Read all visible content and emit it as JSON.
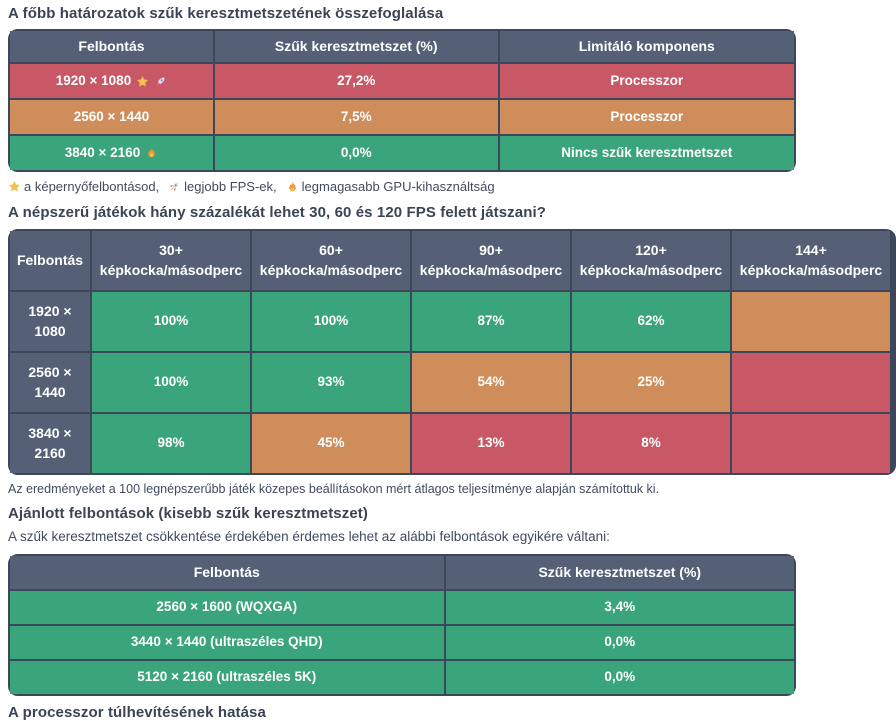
{
  "colors": {
    "red": "#c95866",
    "orange": "#cf8d5b",
    "green": "#3aa57b",
    "header_bg": "#556077",
    "table_border": "#3c4759",
    "heading_text": "#3a4454",
    "body_text": "#414b5e",
    "cell_text": "#ffffff",
    "star_gold": "#f2c14e",
    "flame_orange": "#f49038",
    "rocket_red": "#d95368"
  },
  "icons": {
    "star": "⭐",
    "rocket": "🚀",
    "flame": "🔥"
  },
  "section1": {
    "title": "A főbb határozatok szűk keresztmetszetének összefoglalása",
    "table": {
      "headers": [
        "Felbontás",
        "Szűk keresztmetszet (%)",
        "Limitáló komponens"
      ],
      "rows": [
        {
          "resolution": "1920 × 1080",
          "icons": [
            "star",
            "rocket"
          ],
          "bottleneck": "27,2%",
          "component": "Processzor",
          "status": "red"
        },
        {
          "resolution": "2560 × 1440",
          "icons": [],
          "bottleneck": "7,5%",
          "component": "Processzor",
          "status": "orange"
        },
        {
          "resolution": "3840 × 2160",
          "icons": [
            "flame"
          ],
          "bottleneck": "0,0%",
          "component": "Nincs szűk keresztmetszet",
          "status": "green"
        }
      ]
    },
    "legend": [
      {
        "icon": "star",
        "text": "a képernyőfelbontásod,"
      },
      {
        "icon": "rocket",
        "text": "legjobb FPS-ek,"
      },
      {
        "icon": "flame",
        "text": "legmagasabb GPU-kihasználtság"
      }
    ]
  },
  "section2": {
    "title": "A népszerű játékok hány százalékát lehet 30, 60 és 120 FPS felett játszani?",
    "table": {
      "corner_header": "Felbontás",
      "fps_headers": [
        {
          "threshold": "30+",
          "unit": "képkocka/másodperc"
        },
        {
          "threshold": "60+",
          "unit": "képkocka/másodperc"
        },
        {
          "threshold": "90+",
          "unit": "képkocka/másodperc"
        },
        {
          "threshold": "120+",
          "unit": "képkocka/másodperc"
        },
        {
          "threshold": "144+",
          "unit": "képkocka/másodperc",
          "partially_visible": true
        }
      ],
      "rows": [
        {
          "resolution_line1": "1920 ×",
          "resolution_line2": "1080",
          "cells": [
            {
              "value": "100%",
              "status": "green"
            },
            {
              "value": "100%",
              "status": "green"
            },
            {
              "value": "87%",
              "status": "green"
            },
            {
              "value": "62%",
              "status": "green"
            },
            {
              "value": "",
              "status": "orange"
            }
          ]
        },
        {
          "resolution_line1": "2560 ×",
          "resolution_line2": "1440",
          "cells": [
            {
              "value": "100%",
              "status": "green"
            },
            {
              "value": "93%",
              "status": "green"
            },
            {
              "value": "54%",
              "status": "orange"
            },
            {
              "value": "25%",
              "status": "orange"
            },
            {
              "value": "",
              "status": "red"
            }
          ]
        },
        {
          "resolution_line1": "3840 ×",
          "resolution_line2": "2160",
          "cells": [
            {
              "value": "98%",
              "status": "green"
            },
            {
              "value": "45%",
              "status": "orange"
            },
            {
              "value": "13%",
              "status": "red"
            },
            {
              "value": "8%",
              "status": "red"
            },
            {
              "value": "",
              "status": "red"
            }
          ]
        }
      ]
    },
    "note": "Az eredményeket a 100 legnépszerűbb játék közepes beállításokon mért átlagos teljesítménye alapján számítottuk ki."
  },
  "section3": {
    "title": "Ajánlott felbontások (kisebb szűk keresztmetszet)",
    "description": "A szűk keresztmetszet csökkentése érdekében érdemes lehet az alábbi felbontások egyikére váltani:",
    "table": {
      "headers": [
        "Felbontás",
        "Szűk keresztmetszet (%)"
      ],
      "rows": [
        {
          "resolution": "2560 × 1600 (WQXGA)",
          "bottleneck": "3,4%",
          "status": "green"
        },
        {
          "resolution": "3440 × 1440 (ultraszéles QHD)",
          "bottleneck": "0,0%",
          "status": "green"
        },
        {
          "resolution": "5120 × 2160 (ultraszéles 5K)",
          "bottleneck": "0,0%",
          "status": "green"
        }
      ]
    }
  },
  "section4": {
    "title": "A processzor túlhevítésének hatása"
  }
}
